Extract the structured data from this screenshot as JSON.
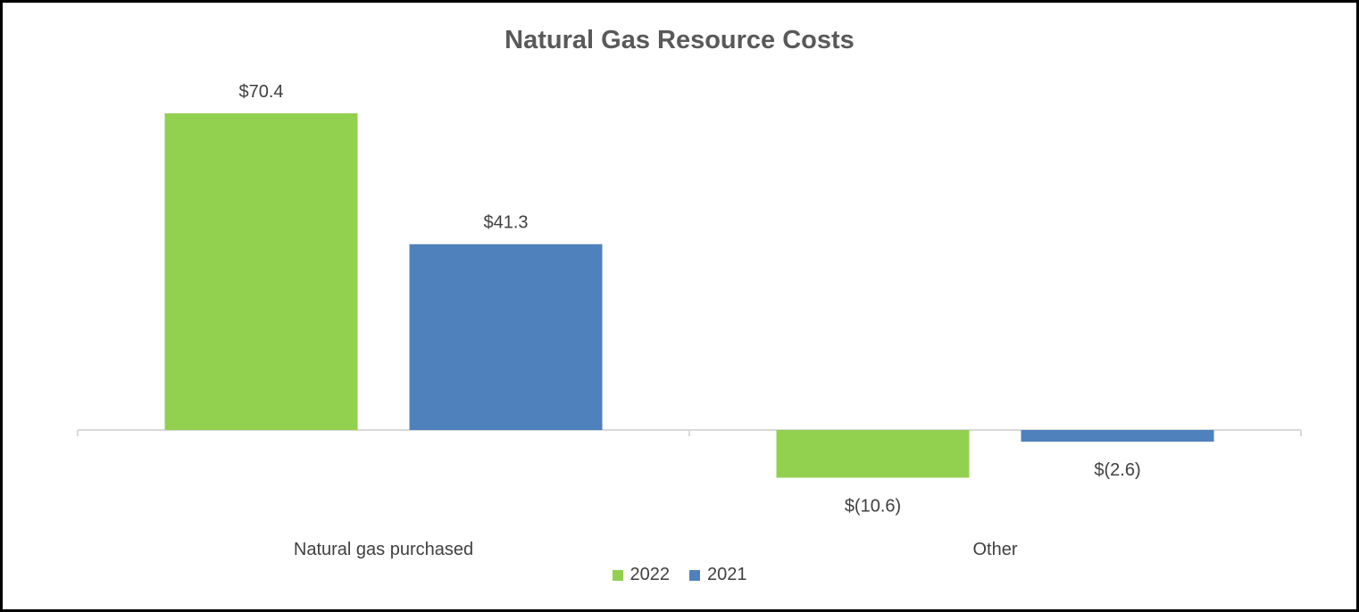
{
  "chart_data": {
    "type": "bar",
    "title": "Natural Gas Resource Costs",
    "categories": [
      "Natural gas purchased",
      "Other"
    ],
    "series": [
      {
        "name": "2022",
        "color": "#92D050",
        "values": [
          70.4,
          -10.6
        ],
        "labels": [
          "$70.4",
          "$(10.6)"
        ]
      },
      {
        "name": "2021",
        "color": "#4F81BD",
        "values": [
          41.3,
          -2.6
        ],
        "labels": [
          "$41.3",
          "$(2.6)"
        ]
      }
    ],
    "ylim": [
      -13,
      80
    ],
    "grid": false,
    "legend": "bottom"
  }
}
